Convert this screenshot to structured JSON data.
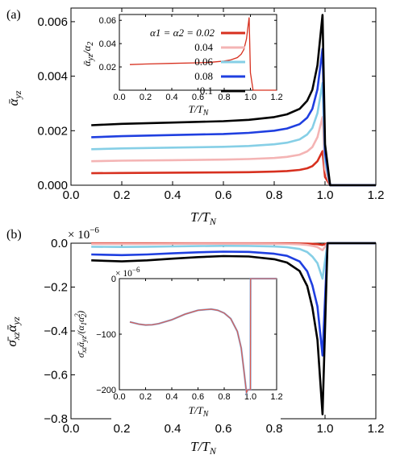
{
  "chart_data": [
    {
      "id": "a",
      "type": "line",
      "panel_label": "(a)",
      "xlabel": "T/T",
      "xlabel_sub": "N",
      "ylabel": "ᾱ",
      "ylabel_sub": "yz",
      "xlim": [
        0.0,
        1.2
      ],
      "ylim": [
        0.0,
        0.0065
      ],
      "xticks": [
        "0.0",
        "0.2",
        "0.4",
        "0.6",
        "0.8",
        "1.0",
        "1.2"
      ],
      "yticks": [
        "0.000",
        "0.002",
        "0.004",
        "0.006"
      ],
      "x": [
        0.08,
        0.2,
        0.4,
        0.6,
        0.7,
        0.8,
        0.85,
        0.9,
        0.93,
        0.95,
        0.97,
        0.99,
        1.0,
        1.02,
        1.2
      ],
      "series": [
        {
          "name": "α1 = α2 = 0.02",
          "color": "#d7301f",
          "values": [
            0.00044,
            0.00045,
            0.00046,
            0.00047,
            0.00048,
            0.0005,
            0.00052,
            0.00056,
            0.00062,
            0.0007,
            0.00088,
            0.00125,
            0.0003,
            0.0,
            0.0
          ]
        },
        {
          "name": "0.04",
          "color": "#f4b4b4",
          "values": [
            0.00088,
            0.0009,
            0.00092,
            0.00094,
            0.00096,
            0.001,
            0.00104,
            0.00112,
            0.00124,
            0.0014,
            0.00176,
            0.0025,
            0.0006,
            0.0,
            0.0
          ]
        },
        {
          "name": "0.06",
          "color": "#86cfe6",
          "values": [
            0.00132,
            0.00135,
            0.00138,
            0.00141,
            0.00144,
            0.0015,
            0.00156,
            0.00168,
            0.00186,
            0.0021,
            0.00264,
            0.00375,
            0.0009,
            0.0,
            0.0
          ]
        },
        {
          "name": "0.08",
          "color": "#1f3fe0",
          "values": [
            0.00176,
            0.0018,
            0.00184,
            0.00188,
            0.00192,
            0.002,
            0.00208,
            0.00224,
            0.00248,
            0.0028,
            0.00352,
            0.005,
            0.0012,
            0.0,
            0.0
          ]
        },
        {
          "name": "0.1",
          "color": "#000000",
          "values": [
            0.0022,
            0.00225,
            0.0023,
            0.00235,
            0.0024,
            0.0025,
            0.0026,
            0.0028,
            0.0031,
            0.0035,
            0.0044,
            0.00625,
            0.0015,
            0.0,
            0.0
          ]
        }
      ],
      "inset": {
        "type": "line",
        "xlabel": "T/T",
        "xlabel_sub": "N",
        "ylabel": "ᾱ",
        "ylabel_sub": "yz",
        "ylabel_tail": "/α",
        "ylabel_tail_sub": "2",
        "xlim": [
          0.0,
          1.2
        ],
        "ylim": [
          0.0,
          0.065
        ],
        "xticks": [
          "0.0",
          "0.2",
          "0.4",
          "0.6",
          "0.8",
          "1.0",
          "1.2"
        ],
        "yticks": [
          "0.02",
          "0.04",
          "0.06"
        ],
        "x": [
          0.08,
          0.2,
          0.4,
          0.6,
          0.7,
          0.8,
          0.85,
          0.9,
          0.93,
          0.95,
          0.97,
          0.99,
          1.0,
          1.02,
          1.2
        ],
        "values": [
          0.022,
          0.0225,
          0.023,
          0.0235,
          0.024,
          0.025,
          0.026,
          0.028,
          0.031,
          0.035,
          0.044,
          0.0625,
          0.015,
          0.0,
          0.0
        ],
        "color": "#d7301f"
      }
    },
    {
      "id": "b",
      "type": "line",
      "panel_label": "(b)",
      "xlabel": "T/T",
      "xlabel_sub": "N",
      "ylabel": "σ̄",
      "ylabel_sub": "xz",
      "ylabel_b": "ᾱ",
      "ylabel_b_sub": "yz",
      "exponent": "× 10",
      "exponent_sup": "−6",
      "xlim": [
        0.0,
        1.2
      ],
      "ylim": [
        -0.8,
        0.0
      ],
      "xticks": [
        "0.0",
        "0.2",
        "0.4",
        "0.6",
        "0.8",
        "1.0",
        "1.2"
      ],
      "yticks": [
        "0.0",
        "−0.2",
        "−0.4",
        "−0.6",
        "−0.8"
      ],
      "x": [
        0.08,
        0.2,
        0.3,
        0.4,
        0.5,
        0.6,
        0.7,
        0.8,
        0.85,
        0.9,
        0.93,
        0.95,
        0.97,
        0.99,
        1.0,
        1.01,
        1.2
      ],
      "series": [
        {
          "name": "α1 = α2 = 0.02",
          "color": "#d7301f",
          "values": [
            -0.0008,
            -0.00085,
            -0.0008,
            -0.00072,
            -0.00065,
            -0.0006,
            -0.00062,
            -0.00075,
            -0.0009,
            -0.0013,
            -0.002,
            -0.003,
            -0.0045,
            -0.008,
            -0.004,
            0.0,
            0.0
          ]
        },
        {
          "name": "0.04",
          "color": "#f4b4b4",
          "values": [
            -0.0032,
            -0.0034,
            -0.0032,
            -0.0029,
            -0.0026,
            -0.0024,
            -0.0025,
            -0.003,
            -0.0036,
            -0.0052,
            -0.008,
            -0.012,
            -0.018,
            -0.032,
            -0.016,
            0.0,
            0.0
          ]
        },
        {
          "name": "0.06",
          "color": "#86cfe6",
          "values": [
            -0.0162,
            -0.0172,
            -0.0162,
            -0.0146,
            -0.0131,
            -0.0122,
            -0.0126,
            -0.0152,
            -0.0182,
            -0.0263,
            -0.0405,
            -0.0608,
            -0.0911,
            -0.162,
            -0.081,
            0.0,
            0.0
          ]
        },
        {
          "name": "0.08",
          "color": "#1f3fe0",
          "values": [
            -0.0512,
            -0.0544,
            -0.0512,
            -0.0461,
            -0.0416,
            -0.0384,
            -0.0397,
            -0.048,
            -0.0576,
            -0.0832,
            -0.128,
            -0.192,
            -0.288,
            -0.512,
            -0.256,
            0.0,
            0.0
          ]
        },
        {
          "name": "0.1",
          "color": "#000000",
          "values": [
            -0.0781,
            -0.083,
            -0.0781,
            -0.0703,
            -0.0635,
            -0.0586,
            -0.0605,
            -0.0732,
            -0.0879,
            -0.127,
            -0.195,
            -0.293,
            -0.44,
            -0.78,
            -0.39,
            0.0,
            0.0
          ]
        }
      ],
      "inset": {
        "type": "line",
        "xlabel": "T/T",
        "xlabel_sub": "N",
        "ylabel": "σ̄",
        "ylabel_sub": "xz",
        "ylabel_b": "ᾱ",
        "ylabel_b_sub": "yz",
        "ylabel_tail": "/(α",
        "ylabel_tail_sub": "1",
        "ylabel_tail2": "α",
        "ylabel_tail2_sup": "2",
        "ylabel_tail2_sub": "2",
        "ylabel_close": ")",
        "exponent": "× 10",
        "exponent_sup": "−6",
        "xlim": [
          0.0,
          1.2
        ],
        "ylim": [
          -200,
          0
        ],
        "xticks": [
          "0.0",
          "0.2",
          "0.4",
          "0.6",
          "0.8",
          "1.0",
          "1.2"
        ],
        "yticks": [
          "0",
          "−100",
          "−200"
        ],
        "x": [
          0.08,
          0.15,
          0.2,
          0.25,
          0.3,
          0.4,
          0.5,
          0.6,
          0.7,
          0.75,
          0.8,
          0.85,
          0.9,
          0.93,
          0.95,
          0.97,
          0.98,
          1.0,
          1.001,
          1.2
        ],
        "values": [
          -78,
          -82,
          -83.5,
          -83,
          -81,
          -74,
          -64,
          -57,
          -55,
          -57,
          -62,
          -72,
          -95,
          -125,
          -165,
          -205,
          -200,
          -200,
          0,
          0
        ],
        "colors": [
          "#7fa7d9",
          "#e05a4c"
        ]
      }
    }
  ]
}
